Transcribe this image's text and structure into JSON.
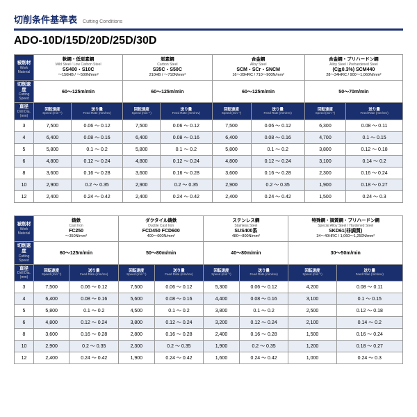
{
  "title_jp": "切削条件基準表",
  "title_en": "Cutting Conditions",
  "model": "ADO-10D/15D/20D/25D/30D",
  "labels": {
    "work_jp": "被削材",
    "work_en": "Work Material",
    "speed_jp": "切削速度",
    "speed_en": "Cutting Speed",
    "dia_jp": "直径",
    "dia_en": "Drill Dia. (mm)",
    "rpm_jp": "回転速度",
    "rpm_en": "Speed (min⁻¹)",
    "feed_jp": "送り量",
    "feed_en": "Feed Rate (mm/rev)"
  },
  "tables": [
    {
      "materials": [
        {
          "l1": "軟鋼・低炭素鋼",
          "l2": "Mild Steel / Low Carbon Steel",
          "l3": "SS400・S10C",
          "l4": "～150HB / ～500N/mm²"
        },
        {
          "l1": "炭素鋼",
          "l2": "Carbon Steel",
          "l3": "S35C・S50C",
          "l4": "210HB / ～710N/mm²"
        },
        {
          "l1": "合金鋼",
          "l2": "Alloy Steel",
          "l3": "SCM・SCr・SNCM",
          "l4": "16～28HRC / 710～900N/mm²"
        },
        {
          "l1": "合金鋼・プリハードン鋼",
          "l2": "Alloy Steel / Prehardened Steel",
          "l3": "(C≧0.3%) SCM440",
          "l4": "28～34HRC / 900～1,060N/mm²"
        }
      ],
      "cutting_speed": [
        "60～125m/min",
        "60～125m/min",
        "60～125m/min",
        "50～70m/min"
      ],
      "diameters": [
        "3",
        "4",
        "5",
        "6",
        "8",
        "10",
        "12"
      ],
      "rows": [
        [
          "7,500",
          "0.06 ～ 0.12",
          "7,500",
          "0.06 ～ 0.12",
          "7,500",
          "0.06 ～ 0.12",
          "6,300",
          "0.08 ～ 0.11"
        ],
        [
          "6,400",
          "0.08 ～ 0.16",
          "6,400",
          "0.08 ～ 0.16",
          "6,400",
          "0.08 ～ 0.16",
          "4,700",
          "0.1 ～ 0.15"
        ],
        [
          "5,800",
          "0.1 ～ 0.2",
          "5,800",
          "0.1 ～ 0.2",
          "5,800",
          "0.1 ～ 0.2",
          "3,800",
          "0.12 ～ 0.18"
        ],
        [
          "4,800",
          "0.12 ～ 0.24",
          "4,800",
          "0.12 ～ 0.24",
          "4,800",
          "0.12 ～ 0.24",
          "3,100",
          "0.14 ～ 0.2"
        ],
        [
          "3,600",
          "0.16 ～ 0.28",
          "3,600",
          "0.16 ～ 0.28",
          "3,600",
          "0.16 ～ 0.28",
          "2,300",
          "0.16 ～ 0.24"
        ],
        [
          "2,900",
          "0.2 ～ 0.35",
          "2,900",
          "0.2 ～ 0.35",
          "2,900",
          "0.2 ～ 0.35",
          "1,900",
          "0.18 ～ 0.27"
        ],
        [
          "2,400",
          "0.24 ～ 0.42",
          "2,400",
          "0.24 ～ 0.42",
          "2,400",
          "0.24 ～ 0.42",
          "1,500",
          "0.24 ～ 0.3"
        ]
      ]
    },
    {
      "materials": [
        {
          "l1": "鋳鉄",
          "l2": "Cast Iron",
          "l3": "FC250",
          "l4": "～350N/mm²"
        },
        {
          "l1": "ダクタイル鋳鉄",
          "l2": "Ductile Cast Iron",
          "l3": "FCD450 FCD600",
          "l4": "400～600N/mm²"
        },
        {
          "l1": "ステンレス鋼",
          "l2": "Stainless Steel",
          "l3": "SUS400系",
          "l4": "480～800N/mm²"
        },
        {
          "l1": "特殊鋼・調質鋼・プリハードン鋼",
          "l2": "Special Alloy Steel / Hardened Steel",
          "l3": "SKD61(非調質)",
          "l4": "34～40HRC / 1,060～1,250N/mm²"
        }
      ],
      "cutting_speed": [
        "60～125m/min",
        "50～80m/min",
        "40～80m/min",
        "30～50m/min"
      ],
      "diameters": [
        "3",
        "4",
        "5",
        "6",
        "8",
        "10",
        "12"
      ],
      "rows": [
        [
          "7,500",
          "0.06 ～ 0.12",
          "7,500",
          "0.06 ～ 0.12",
          "5,300",
          "0.06 ～ 0.12",
          "4,200",
          "0.08 ～ 0.11"
        ],
        [
          "6,400",
          "0.08 ～ 0.16",
          "5,600",
          "0.08 ～ 0.16",
          "4,400",
          "0.08 ～ 0.16",
          "3,100",
          "0.1 ～ 0.15"
        ],
        [
          "5,800",
          "0.1 ～ 0.2",
          "4,500",
          "0.1 ～ 0.2",
          "3,800",
          "0.1 ～ 0.2",
          "2,500",
          "0.12 ～ 0.18"
        ],
        [
          "4,800",
          "0.12 ～ 0.24",
          "3,800",
          "0.12 ～ 0.24",
          "3,200",
          "0.12 ～ 0.24",
          "2,100",
          "0.14 ～ 0.2"
        ],
        [
          "3,600",
          "0.16 ～ 0.28",
          "2,800",
          "0.16 ～ 0.28",
          "2,400",
          "0.16 ～ 0.28",
          "1,500",
          "0.16 ～ 0.24"
        ],
        [
          "2,900",
          "0.2 ～ 0.35",
          "2,300",
          "0.2 ～ 0.35",
          "1,900",
          "0.2 ～ 0.35",
          "1,200",
          "0.18 ～ 0.27"
        ],
        [
          "2,400",
          "0.24 ～ 0.42",
          "1,900",
          "0.24 ～ 0.42",
          "1,600",
          "0.24 ～ 0.42",
          "1,000",
          "0.24 ～ 0.3"
        ]
      ]
    }
  ]
}
